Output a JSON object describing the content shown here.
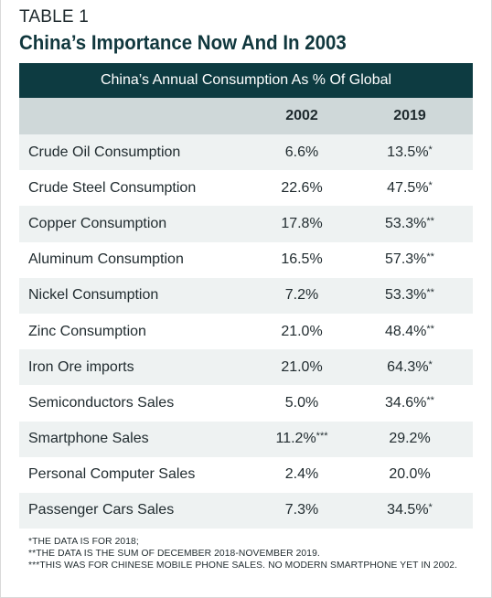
{
  "label": "TABLE 1",
  "title": "China’s Importance Now And In 2003",
  "caption": "China’s Annual Consumption As % Of Global",
  "columns": [
    "",
    "2002",
    "2019"
  ],
  "rows": [
    {
      "item": "Crude Oil Consumption",
      "y2002": "6.6%",
      "y2002_mark": "",
      "y2019": "13.5%",
      "y2019_mark": "*"
    },
    {
      "item": "Crude Steel Consumption",
      "y2002": "22.6%",
      "y2002_mark": "",
      "y2019": "47.5%",
      "y2019_mark": "*"
    },
    {
      "item": "Copper Consumption",
      "y2002": "17.8%",
      "y2002_mark": "",
      "y2019": "53.3%",
      "y2019_mark": "**"
    },
    {
      "item": "Aluminum Consumption",
      "y2002": "16.5%",
      "y2002_mark": "",
      "y2019": "57.3%",
      "y2019_mark": "**"
    },
    {
      "item": "Nickel Consumption",
      "y2002": "7.2%",
      "y2002_mark": "",
      "y2019": "53.3%",
      "y2019_mark": "**"
    },
    {
      "item": "Zinc Consumption",
      "y2002": "21.0%",
      "y2002_mark": "",
      "y2019": "48.4%",
      "y2019_mark": "**"
    },
    {
      "item": "Iron Ore imports",
      "y2002": "21.0%",
      "y2002_mark": "",
      "y2019": "64.3%",
      "y2019_mark": "*"
    },
    {
      "item": "Semiconductors Sales",
      "y2002": "5.0%",
      "y2002_mark": "",
      "y2019": "34.6%",
      "y2019_mark": "**"
    },
    {
      "item": "Smartphone Sales",
      "y2002": "11.2%",
      "y2002_mark": "***",
      "y2019": "29.2%",
      "y2019_mark": ""
    },
    {
      "item": "Personal Computer Sales",
      "y2002": "2.4%",
      "y2002_mark": "",
      "y2019": "20.0%",
      "y2019_mark": ""
    },
    {
      "item": "Passenger Cars Sales",
      "y2002": "7.3%",
      "y2002_mark": "",
      "y2019": "34.5%",
      "y2019_mark": "*"
    }
  ],
  "notes": [
    "*THE DATA IS FOR 2018;",
    "**THE DATA IS THE SUM OF DECEMBER 2018-NOVEMBER 2019.",
    "***THIS WAS FOR CHINESE MOBILE PHONE SALES. NO MODERN SMARTPHONE YET IN 2002."
  ],
  "colors": {
    "header_bar": "#0d3b41",
    "column_header": "#cfd8d9",
    "row_shade": "#eef2f2",
    "title": "#10373d"
  }
}
